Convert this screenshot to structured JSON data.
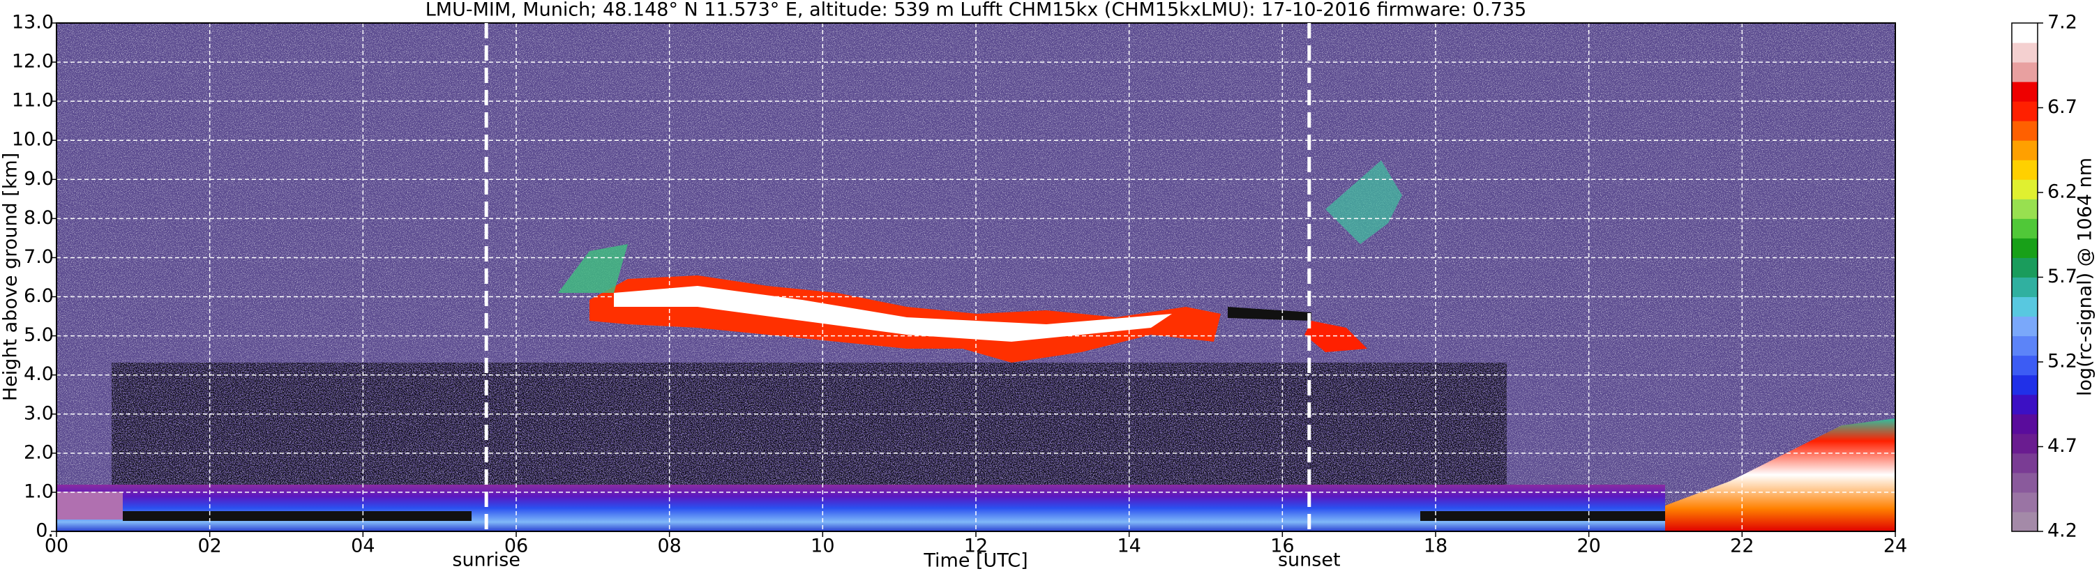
{
  "chart_data": {
    "type": "heatmap",
    "title": "LMU-MIM, Munich; 48.148° N 11.573° E, altitude: 539 m    Lufft CHM15kx (CHM15kxLMU): 17-10-2016    firmware: 0.735",
    "x_label": "Time [UTC]",
    "y_label": "Height above ground [km]",
    "xlim": [
      0,
      24
    ],
    "xticks": [
      {
        "value": 0,
        "label": "00"
      },
      {
        "value": 2,
        "label": "02"
      },
      {
        "value": 4,
        "label": "04"
      },
      {
        "value": 6,
        "label": "06"
      },
      {
        "value": 8,
        "label": "08"
      },
      {
        "value": 10,
        "label": "10"
      },
      {
        "value": 12,
        "label": "12"
      },
      {
        "value": 14,
        "label": "14"
      },
      {
        "value": 16,
        "label": "16"
      },
      {
        "value": 18,
        "label": "18"
      },
      {
        "value": 20,
        "label": "20"
      },
      {
        "value": 22,
        "label": "22"
      },
      {
        "value": 24,
        "label": "24"
      }
    ],
    "ylim": [
      0,
      13
    ],
    "yticks": [
      {
        "value": 0,
        "label": "0."
      },
      {
        "value": 1,
        "label": "1.0"
      },
      {
        "value": 2,
        "label": "2.0"
      },
      {
        "value": 3,
        "label": "3.0"
      },
      {
        "value": 4,
        "label": "4.0"
      },
      {
        "value": 5,
        "label": "5.0"
      },
      {
        "value": 6,
        "label": "6.0"
      },
      {
        "value": 7,
        "label": "7.0"
      },
      {
        "value": 8,
        "label": "8.0"
      },
      {
        "value": 9,
        "label": "9.0"
      },
      {
        "value": 10,
        "label": "10.0"
      },
      {
        "value": 11,
        "label": "11.0"
      },
      {
        "value": 12,
        "label": "12.0"
      },
      {
        "value": 13,
        "label": "13.0"
      }
    ],
    "grid": true,
    "annotations": [
      {
        "text": "sunrise",
        "x": 5.61
      },
      {
        "text": "sunset",
        "x": 16.35
      }
    ],
    "colorbar": {
      "label": "log(rc-signal) @ 1064 nm",
      "lim": [
        4.2,
        7.2
      ],
      "ticks": [
        4.2,
        4.7,
        5.2,
        5.7,
        6.2,
        6.7,
        7.2
      ],
      "colors": [
        "#a48aa8",
        "#9a74a4",
        "#8a5a9c",
        "#7a3c94",
        "#6a1c90",
        "#5a0c9c",
        "#3c10c4",
        "#2030e8",
        "#3c5cf4",
        "#5c84f8",
        "#7aa8fa",
        "#58c8e0",
        "#30b0a0",
        "#1a9c5c",
        "#18a018",
        "#50c838",
        "#98e050",
        "#e0f030",
        "#ffd000",
        "#ffa000",
        "#ff6000",
        "#ff2000",
        "#ee0000",
        "#e8a0a0",
        "#f4d0d0",
        "#ffffff"
      ]
    }
  }
}
